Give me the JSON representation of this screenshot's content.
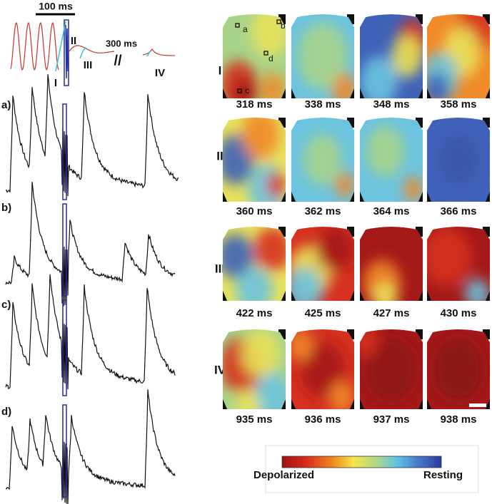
{
  "inset": {
    "scale_label": "100 ms",
    "gap_label": "300 ms",
    "phase_labels": [
      "I",
      "II",
      "III",
      "IV"
    ]
  },
  "trace_labels": [
    "a)",
    "b)",
    "c)",
    "d)"
  ],
  "maps": {
    "rows": [
      {
        "label": "I",
        "times": [
          "318 ms",
          "338 ms",
          "348 ms",
          "358 ms"
        ]
      },
      {
        "label": "II",
        "times": [
          "360 ms",
          "362 ms",
          "364 ms",
          "366 ms"
        ]
      },
      {
        "label": "III",
        "times": [
          "422 ms",
          "425 ms",
          "427 ms",
          "430 ms"
        ]
      },
      {
        "label": "IV",
        "times": [
          "935 ms",
          "936 ms",
          "937 ms",
          "938 ms"
        ]
      }
    ],
    "site_labels": [
      "a",
      "b",
      "c",
      "d"
    ]
  },
  "colorbar": {
    "min_label": "Depolarized",
    "max_label": "Resting"
  }
}
